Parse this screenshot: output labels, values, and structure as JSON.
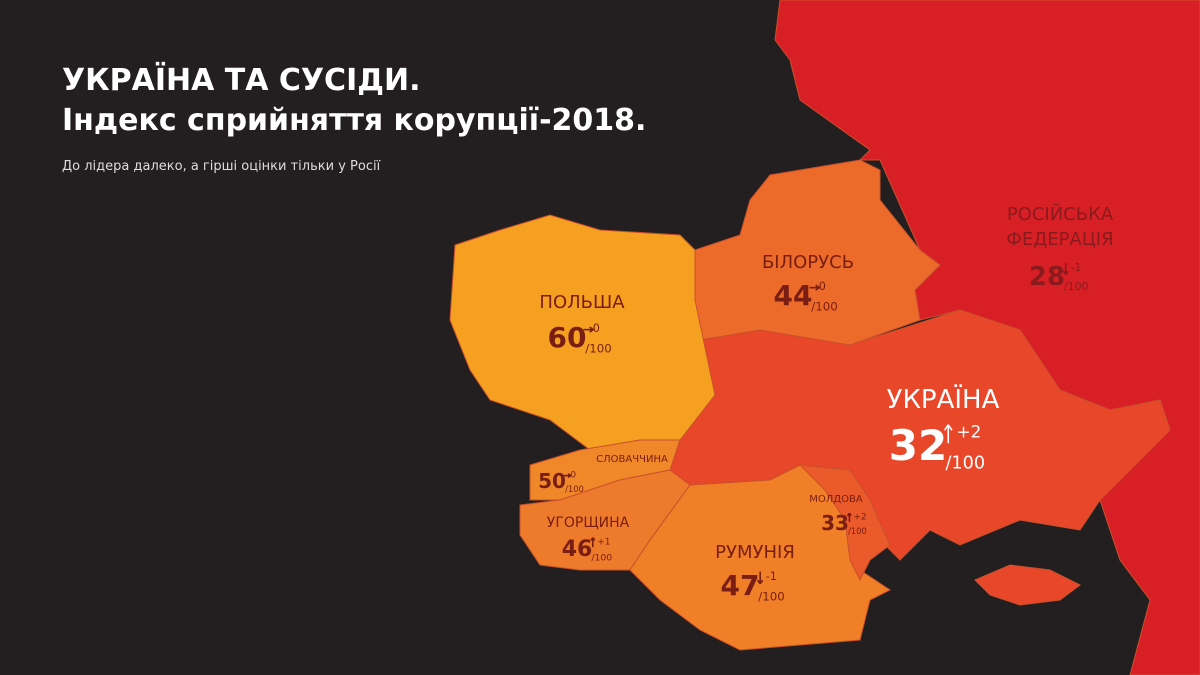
{
  "header": {
    "title_lines": [
      "УКРАЇНА ТА СУСІДИ.",
      "Індекс сприйняття корупції-2018."
    ],
    "subtitle": "До лідера далеко, а гірші оцінки тільки у Росії"
  },
  "countries": [
    {
      "name": "ПОЛЬША",
      "score": 60,
      "change": "0",
      "scale": "/100"
    },
    {
      "name": "БІЛОРУСЬ",
      "score": 44,
      "change": "0",
      "scale": "/100"
    },
    {
      "name": [
        "РОСІЙСЬКА",
        "ФЕДЕРАЦІЯ"
      ],
      "score": 28,
      "change": "-1",
      "scale": "/100"
    },
    {
      "name": "УКРАЇНА",
      "score": 32,
      "change": "+2",
      "scale": "/100"
    },
    {
      "name": "СЛОВАЧЧИНА",
      "score": 50,
      "change": "0",
      "scale": "/100"
    },
    {
      "name": "УГОРЩИНА",
      "score": 46,
      "change": "+1",
      "scale": "/100"
    },
    {
      "name": "РУМУНІЯ",
      "score": 47,
      "change": "-1",
      "scale": "/100"
    },
    {
      "name": "МОЛДОВА",
      "score": 33,
      "change": "+2",
      "scale": "/100"
    }
  ]
}
